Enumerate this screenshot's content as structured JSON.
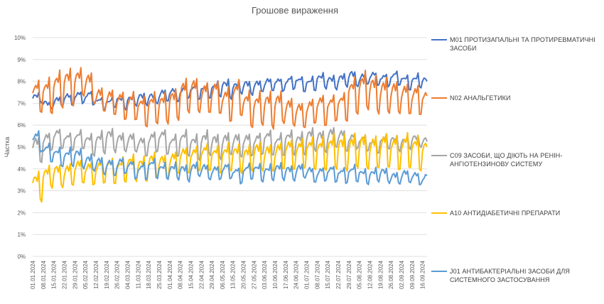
{
  "chart_data": {
    "type": "line",
    "title": "Грошове вираження",
    "ylabel": "Частка",
    "xlabel": "",
    "ylim": [
      0,
      10
    ],
    "y_ticks": [
      "0%",
      "1%",
      "2%",
      "3%",
      "4%",
      "5%",
      "6%",
      "7%",
      "8%",
      "9%",
      "10%"
    ],
    "y_tick_values": [
      0,
      1,
      2,
      3,
      4,
      5,
      6,
      7,
      8,
      9,
      10
    ],
    "x_ticks": [
      "01.01.2024",
      "08.01.2024",
      "15.01.2024",
      "22.01.2024",
      "29.01.2024",
      "05.02.2024",
      "12.02.2024",
      "19.02.2024",
      "26.02.2024",
      "04.03.2024",
      "11.03.2024",
      "18.03.2024",
      "25.03.2024",
      "01.04.2024",
      "08.04.2024",
      "15.04.2024",
      "22.04.2024",
      "29.04.2024",
      "06.05.2024",
      "13.05.2024",
      "20.05.2024",
      "27.05.2024",
      "03.06.2024",
      "10.06.2024",
      "17.06.2024",
      "24.06.2024",
      "01.07.2024",
      "08.07.2024",
      "15.07.2024",
      "22.07.2024",
      "29.07.2024",
      "05.08.2024",
      "12.08.2024",
      "19.08.2024",
      "26.08.2024",
      "02.09.2024",
      "09.09.2024",
      "16.09.2024"
    ],
    "x_range_days": [
      0,
      262
    ],
    "grid": true,
    "legend_position": "right",
    "series": [
      {
        "name": "M01 ПРОТИЗАПАЛЬНІ ТА ПРОТИРЕВМАТИЧНІ ЗАСОБИ",
        "color": "#4472C4",
        "weekly_base": [
          7.0,
          6.8,
          6.8,
          6.9,
          7.0,
          6.9,
          6.8,
          6.8,
          6.8,
          6.9,
          6.9,
          7.0,
          7.0,
          7.1,
          7.2,
          7.2,
          7.3,
          7.3,
          7.3,
          7.4,
          7.4,
          7.5,
          7.5,
          7.6,
          7.6,
          7.6,
          7.6,
          7.7,
          7.7,
          7.7,
          7.8,
          7.8,
          7.8,
          7.8,
          7.8,
          7.7,
          7.7,
          7.6
        ],
        "weekly_peak": [
          0.4,
          0.3,
          0.5,
          0.5,
          0.6,
          0.6,
          0.5,
          0.4,
          0.5,
          0.5,
          0.5,
          0.5,
          0.6,
          0.6,
          0.6,
          0.6,
          0.6,
          0.6,
          0.8,
          0.6,
          0.6,
          0.6,
          0.6,
          0.6,
          0.6,
          0.6,
          0.6,
          0.6,
          0.6,
          0.6,
          0.7,
          0.6,
          0.6,
          0.6,
          0.6,
          0.6,
          0.6,
          0.6
        ]
      },
      {
        "name": "N02 АНАЛЬГЕТИКИ",
        "color": "#ED7D31",
        "weekly_base": [
          6.6,
          6.6,
          6.8,
          7.0,
          7.3,
          7.0,
          6.6,
          6.4,
          6.3,
          6.2,
          6.0,
          6.1,
          6.1,
          6.3,
          6.5,
          6.6,
          6.5,
          6.5,
          6.2,
          6.4,
          6.0,
          6.0,
          5.9,
          6.1,
          5.9,
          5.9,
          6.0,
          6.0,
          6.2,
          6.2,
          6.6,
          6.7,
          6.6,
          6.5,
          6.5,
          6.5,
          6.4,
          6.4
        ],
        "weekly_peak": [
          1.4,
          1.6,
          1.6,
          1.6,
          1.3,
          1.4,
          1.2,
          1.2,
          1.3,
          1.3,
          1.3,
          1.4,
          1.3,
          1.4,
          1.6,
          1.6,
          1.5,
          1.5,
          1.6,
          1.6,
          1.6,
          1.5,
          1.6,
          1.5,
          1.3,
          1.2,
          1.2,
          1.4,
          1.2,
          1.2,
          1.6,
          1.7,
          1.7,
          1.7,
          1.5,
          1.5,
          1.4,
          1.3
        ]
      },
      {
        "name": "C09 ЗАСОБИ, ЩО ДІЮТЬ НА РЕНІН-АНГІОТЕНЗИНОВУ СИСТЕМУ",
        "color": "#A5A5A5",
        "weekly_base": [
          4.3,
          4.8,
          4.9,
          4.9,
          4.9,
          4.7,
          4.7,
          4.8,
          4.8,
          4.7,
          4.6,
          4.7,
          4.7,
          4.6,
          4.6,
          4.5,
          4.6,
          4.5,
          4.6,
          4.5,
          4.6,
          4.6,
          4.7,
          4.6,
          4.7,
          4.7,
          4.8,
          4.8,
          4.9,
          4.8,
          4.9,
          4.8,
          4.8,
          4.9,
          4.9,
          4.9,
          5.0,
          5.0
        ],
        "weekly_peak": [
          1.2,
          0.9,
          0.9,
          0.8,
          0.8,
          0.9,
          1.0,
          1.0,
          0.9,
          0.9,
          0.9,
          1.0,
          1.1,
          1.0,
          1.1,
          1.1,
          1.1,
          1.1,
          1.1,
          1.1,
          1.1,
          1.0,
          1.1,
          1.0,
          1.0,
          1.0,
          1.0,
          1.0,
          1.0,
          1.0,
          0.8,
          0.7,
          0.6,
          0.6,
          0.6,
          0.6,
          0.5,
          0.5
        ]
      },
      {
        "name": "A10 АНТИДІАБЕТИЧНІ ПРЕПАРАТИ",
        "color": "#FFC000",
        "weekly_base": [
          2.6,
          3.1,
          3.2,
          3.2,
          3.3,
          3.3,
          3.3,
          3.4,
          3.4,
          3.5,
          3.5,
          3.6,
          3.6,
          3.7,
          3.8,
          3.9,
          3.9,
          3.9,
          3.9,
          3.9,
          3.9,
          3.9,
          3.9,
          3.9,
          4.0,
          4.0,
          4.0,
          4.0,
          4.0,
          4.0,
          4.0,
          4.0,
          4.0,
          4.0,
          4.0,
          4.0,
          4.0,
          4.0
        ],
        "weekly_peak": [
          1.3,
          1.0,
          1.0,
          1.1,
          1.1,
          1.1,
          1.1,
          1.1,
          1.1,
          1.1,
          1.1,
          1.1,
          1.1,
          1.1,
          1.2,
          1.2,
          1.2,
          1.2,
          1.2,
          1.2,
          1.2,
          1.3,
          1.3,
          1.3,
          1.4,
          1.4,
          1.4,
          1.5,
          1.5,
          1.6,
          1.6,
          1.6,
          1.6,
          1.6,
          1.6,
          1.6,
          1.5,
          1.5
        ]
      },
      {
        "name": "J01 АНТИБАКТЕРІАЛЬНІ ЗАСОБИ ДЛЯ СИСТЕМНОГО ЗАСТОСУВАННЯ",
        "color": "#5B9BD5",
        "weekly_base": [
          4.8,
          4.3,
          4.2,
          4.1,
          4.1,
          3.9,
          3.7,
          3.7,
          3.7,
          3.6,
          3.5,
          3.6,
          3.6,
          3.5,
          3.5,
          3.6,
          3.5,
          3.5,
          3.5,
          3.4,
          3.5,
          3.5,
          3.5,
          3.5,
          3.5,
          3.5,
          3.4,
          3.4,
          3.4,
          3.4,
          3.4,
          3.4,
          3.4,
          3.4,
          3.3,
          3.3,
          3.3,
          3.2
        ],
        "weekly_peak": [
          1.0,
          0.8,
          0.8,
          0.8,
          0.8,
          0.8,
          0.8,
          0.8,
          0.8,
          0.8,
          0.8,
          0.8,
          0.7,
          0.7,
          0.7,
          0.7,
          0.7,
          0.7,
          0.7,
          0.7,
          0.7,
          0.7,
          0.7,
          0.7,
          0.7,
          0.7,
          0.7,
          0.7,
          0.7,
          0.7,
          0.7,
          0.6,
          0.6,
          0.6,
          0.6,
          0.6,
          0.6,
          0.6
        ]
      }
    ]
  }
}
